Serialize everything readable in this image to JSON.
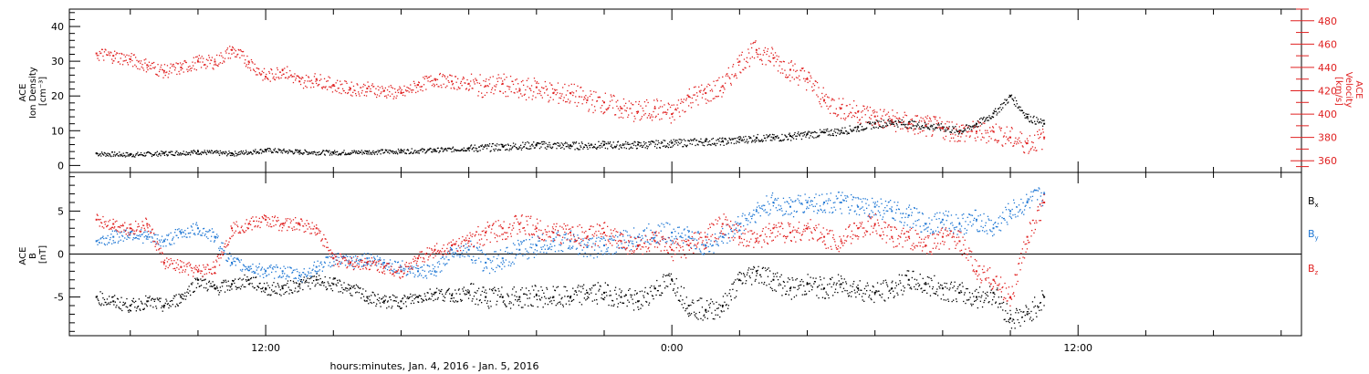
{
  "chart_data": [
    {
      "type": "scatter",
      "ylabel": [
        "ACE",
        "Ion Density",
        "[cm⁻³]"
      ],
      "ylim": [
        -2,
        45
      ],
      "yticks": [
        0,
        10,
        20,
        30,
        40
      ],
      "y2label": [
        "ACE",
        "Velocity",
        "[km/s]"
      ],
      "y2lim": [
        350,
        490
      ],
      "y2ticks": [
        360,
        380,
        400,
        420,
        440,
        460,
        480
      ],
      "grid": false,
      "series": [
        {
          "axis": "left",
          "color": "#000000",
          "x": [
            7.0,
            8.0,
            9.0,
            10.0,
            11.0,
            12.0,
            13.0,
            14.0,
            15.0,
            16.0,
            17.0,
            18.0,
            19.0,
            20.0,
            21.0,
            22.0,
            23.0,
            24.0,
            25.0,
            25.5,
            26.0,
            26.5,
            27.0,
            27.5,
            28.0,
            28.5,
            29.0,
            29.5,
            30.0,
            30.5,
            31.0,
            31.5,
            32.0,
            32.5,
            33.0,
            33.5,
            34.0,
            34.5,
            35.0
          ],
          "y": [
            3.5,
            3.2,
            3.6,
            4.0,
            3.5,
            4.5,
            4.0,
            3.8,
            4.0,
            4.2,
            4.5,
            5.0,
            5.5,
            6.0,
            5.8,
            6.0,
            6.0,
            6.5,
            7.0,
            7.0,
            7.5,
            8.0,
            8.0,
            8.5,
            9.0,
            9.5,
            10.0,
            11.0,
            12.0,
            12.5,
            12.0,
            11.5,
            11.0,
            10.0,
            12.0,
            15.0,
            20.0,
            14.0,
            12.0
          ]
        },
        {
          "axis": "right",
          "color": "#e02020",
          "x": [
            7.0,
            7.5,
            8.0,
            8.5,
            9.0,
            9.5,
            10.0,
            10.5,
            11.0,
            11.5,
            12.0,
            12.5,
            13.0,
            13.5,
            14.0,
            14.5,
            15.0,
            15.5,
            16.0,
            16.5,
            17.0,
            17.5,
            18.0,
            18.5,
            19.0,
            19.5,
            20.0,
            20.5,
            21.0,
            21.5,
            22.0,
            22.5,
            23.0,
            23.5,
            24.0,
            24.5,
            25.0,
            25.5,
            26.0,
            26.5,
            27.0,
            27.5,
            28.0,
            28.5,
            29.0,
            29.5,
            30.0,
            30.5,
            31.0,
            31.5,
            32.0,
            32.5,
            33.0,
            33.5,
            34.0,
            34.5,
            35.0
          ],
          "y": [
            452,
            450,
            447,
            442,
            437,
            440,
            445,
            445,
            455,
            445,
            432,
            438,
            428,
            430,
            425,
            422,
            422,
            420,
            418,
            425,
            430,
            428,
            426,
            424,
            426,
            420,
            423,
            418,
            418,
            412,
            410,
            405,
            402,
            405,
            400,
            415,
            418,
            424,
            445,
            455,
            448,
            438,
            430,
            412,
            405,
            402,
            398,
            395,
            392,
            390,
            388,
            385,
            385,
            385,
            380,
            375,
            380
          ]
        }
      ]
    },
    {
      "type": "scatter",
      "ylabel": [
        "ACE",
        "B",
        "[nT]"
      ],
      "ylim": [
        -9.5,
        9.5
      ],
      "yticks": [
        -5,
        0,
        5
      ],
      "zero_line": true,
      "legend": "right",
      "grid": false,
      "series": [
        {
          "name": "Bx",
          "label_main": "B",
          "label_sub": "x",
          "color": "#000000",
          "x": [
            7.0,
            7.5,
            8.0,
            8.5,
            9.0,
            9.5,
            10.0,
            10.5,
            11.0,
            11.5,
            12.0,
            12.5,
            13.0,
            13.5,
            14.0,
            14.5,
            15.0,
            15.5,
            16.0,
            16.5,
            17.0,
            17.5,
            18.0,
            18.5,
            19.0,
            19.5,
            20.0,
            20.5,
            21.0,
            21.5,
            22.0,
            22.5,
            23.0,
            23.5,
            24.0,
            24.5,
            25.0,
            25.5,
            26.0,
            26.5,
            27.0,
            27.5,
            28.0,
            28.5,
            29.0,
            29.5,
            30.0,
            30.5,
            31.0,
            31.5,
            32.0,
            32.5,
            33.0,
            33.5,
            34.0,
            34.5,
            35.0
          ],
          "y": [
            -5.0,
            -5.5,
            -6.0,
            -5.5,
            -6.0,
            -5.0,
            -3.0,
            -4.0,
            -3.5,
            -3.0,
            -4.0,
            -4.0,
            -3.5,
            -3.0,
            -3.5,
            -4.0,
            -5.0,
            -5.5,
            -5.5,
            -5.0,
            -4.5,
            -4.8,
            -4.5,
            -5.0,
            -5.0,
            -5.0,
            -4.8,
            -5.0,
            -5.0,
            -4.5,
            -4.5,
            -5.0,
            -5.5,
            -4.0,
            -3.0,
            -6.0,
            -6.5,
            -6.0,
            -3.0,
            -2.0,
            -3.0,
            -4.0,
            -3.5,
            -4.0,
            -3.5,
            -4.0,
            -4.5,
            -4.0,
            -3.0,
            -3.5,
            -4.0,
            -4.5,
            -5.0,
            -4.5,
            -7.5,
            -7.0,
            -5.0
          ]
        },
        {
          "name": "By",
          "label_main": "B",
          "label_sub": "y",
          "color": "#1f77d4",
          "x": [
            7.0,
            7.5,
            8.0,
            8.5,
            9.0,
            9.5,
            10.0,
            10.5,
            11.0,
            11.5,
            12.0,
            12.5,
            13.0,
            13.5,
            14.0,
            14.5,
            15.0,
            15.5,
            16.0,
            16.5,
            17.0,
            17.5,
            18.0,
            18.5,
            19.0,
            19.5,
            20.0,
            20.5,
            21.0,
            21.5,
            22.0,
            22.5,
            23.0,
            23.5,
            24.0,
            24.5,
            25.0,
            25.5,
            26.0,
            26.5,
            27.0,
            27.5,
            28.0,
            28.5,
            29.0,
            29.5,
            30.0,
            30.5,
            31.0,
            31.5,
            32.0,
            32.5,
            33.0,
            33.5,
            34.0,
            34.5,
            35.0
          ],
          "y": [
            1.5,
            2.0,
            2.5,
            2.0,
            1.5,
            2.5,
            3.0,
            2.0,
            -1.0,
            -1.5,
            -2.0,
            -2.0,
            -2.5,
            -1.5,
            -0.5,
            -1.0,
            -0.5,
            -1.0,
            -1.5,
            -2.0,
            -2.0,
            0.5,
            0.5,
            -1.0,
            -0.5,
            0.5,
            1.0,
            1.5,
            1.5,
            0.8,
            1.0,
            1.5,
            2.0,
            2.5,
            2.5,
            2.0,
            1.0,
            2.0,
            3.5,
            5.0,
            6.0,
            5.5,
            6.0,
            6.0,
            6.0,
            5.5,
            5.5,
            5.0,
            4.5,
            3.5,
            4.0,
            3.5,
            4.0,
            3.0,
            5.0,
            6.0,
            7.0
          ]
        },
        {
          "name": "Bz",
          "label_main": "B",
          "label_sub": "z",
          "color": "#e02020",
          "x": [
            7.0,
            7.5,
            8.0,
            8.5,
            9.0,
            9.5,
            10.0,
            10.5,
            11.0,
            11.5,
            12.0,
            12.5,
            13.0,
            13.5,
            14.0,
            14.5,
            15.0,
            15.5,
            16.0,
            16.5,
            17.0,
            17.5,
            18.0,
            18.5,
            19.0,
            19.5,
            20.0,
            20.5,
            21.0,
            21.5,
            22.0,
            22.5,
            23.0,
            23.5,
            24.0,
            24.5,
            25.0,
            25.5,
            26.0,
            26.5,
            27.0,
            27.5,
            28.0,
            28.5,
            29.0,
            29.5,
            30.0,
            30.5,
            31.0,
            31.5,
            32.0,
            32.5,
            33.0,
            33.5,
            34.0,
            34.5,
            35.0
          ],
          "y": [
            4.0,
            3.5,
            3.0,
            3.5,
            -1.0,
            -1.5,
            -2.0,
            -1.5,
            3.0,
            3.5,
            4.0,
            3.5,
            3.5,
            3.0,
            -0.5,
            -1.0,
            -1.0,
            -1.5,
            -2.0,
            -0.5,
            0.5,
            1.0,
            1.5,
            2.5,
            3.0,
            3.5,
            3.0,
            2.5,
            2.5,
            2.0,
            2.5,
            1.5,
            1.0,
            1.5,
            0.5,
            1.0,
            2.0,
            3.5,
            2.0,
            1.5,
            3.0,
            2.5,
            3.0,
            2.0,
            1.5,
            3.0,
            3.5,
            2.0,
            2.0,
            1.0,
            2.0,
            1.5,
            -2.0,
            -3.0,
            -5.0,
            2.0,
            6.0
          ]
        }
      ]
    }
  ],
  "xaxis": {
    "title": "hours:minutes, Jan.  4, 2016 - Jan.  5, 2016",
    "range": [
      6.2,
      42.6
    ],
    "major_ticks": [
      12,
      24,
      36
    ],
    "major_labels": [
      "12:00",
      "0:00",
      "12:00"
    ],
    "minor_ticks": [
      8,
      10,
      14,
      16,
      18,
      20,
      22,
      26,
      28,
      30,
      32,
      34,
      38,
      40,
      42
    ]
  }
}
